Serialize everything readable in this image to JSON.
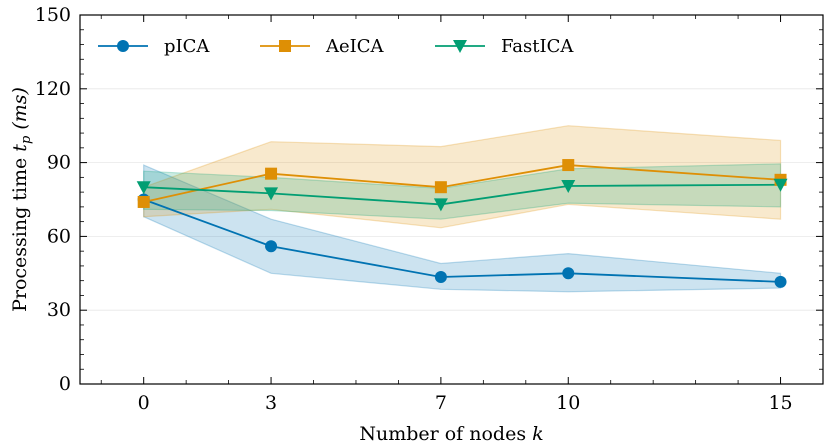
{
  "chart_data": {
    "type": "line",
    "xlabel": "Number of nodes",
    "xlabel_var": "k",
    "ylabel": "Processing time",
    "ylabel_var": "t",
    "ylabel_sub": "p",
    "ylabel_unit": "(ms)",
    "x": [
      0,
      3,
      7,
      10,
      15
    ],
    "xticks": [
      0,
      3,
      7,
      10,
      15
    ],
    "yticks": [
      0,
      30,
      60,
      90,
      120,
      150
    ],
    "ylim": [
      0,
      150
    ],
    "legend_position": "top-left",
    "grid": "horizontal-light",
    "series": [
      {
        "name": "pICA",
        "color": "#0173b2",
        "marker": "circle",
        "values": [
          75,
          56,
          43.5,
          45,
          41.5
        ],
        "lower": [
          68,
          45,
          38.5,
          37.5,
          39
        ],
        "upper": [
          89,
          67,
          49,
          53,
          45
        ]
      },
      {
        "name": "AeICA",
        "color": "#de8f05",
        "marker": "square",
        "values": [
          74,
          85.5,
          80,
          89,
          83
        ],
        "lower": [
          68,
          71,
          63.5,
          73,
          67
        ],
        "upper": [
          80,
          98.5,
          96.5,
          105,
          99
        ]
      },
      {
        "name": "FastICA",
        "color": "#029e73",
        "marker": "triangle-down",
        "values": [
          80,
          77.5,
          73,
          80.5,
          81
        ],
        "lower": [
          71,
          70.5,
          67,
          73.5,
          72
        ],
        "upper": [
          86.5,
          84,
          79.5,
          87.5,
          89.5
        ]
      }
    ]
  }
}
